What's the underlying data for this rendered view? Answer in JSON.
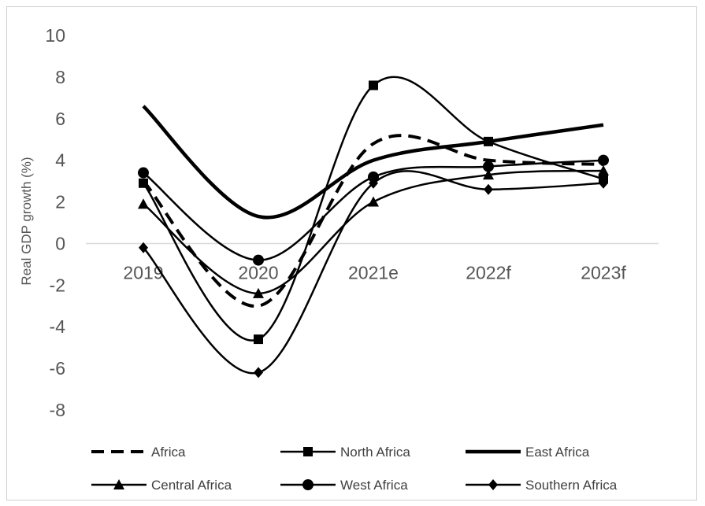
{
  "chart_data": {
    "type": "line",
    "title": "",
    "xlabel": "",
    "ylabel": "Real GDP growth (%)",
    "categories": [
      "2019",
      "2020",
      "2021e",
      "2022f",
      "2023f"
    ],
    "ylim": [
      -8,
      10
    ],
    "yticks": [
      "10",
      "8",
      "6",
      "4",
      "2",
      "0",
      "-2",
      "-4",
      "-6",
      "-8"
    ],
    "grid": false,
    "smoothed": true,
    "legend_position": "bottom",
    "series": [
      {
        "name": "Africa",
        "values": [
          3.0,
          -3.0,
          4.8,
          4.0,
          3.8
        ],
        "style": "dashed",
        "marker": "none",
        "color": "#000000"
      },
      {
        "name": "North Africa",
        "values": [
          2.9,
          -4.6,
          7.6,
          4.9,
          3.1
        ],
        "style": "solid",
        "marker": "square",
        "color": "#000000"
      },
      {
        "name": "East Africa",
        "values": [
          6.6,
          1.3,
          4.0,
          4.9,
          5.7
        ],
        "style": "thick",
        "marker": "none",
        "color": "#000000"
      },
      {
        "name": "Central Africa",
        "values": [
          1.9,
          -2.4,
          2.0,
          3.3,
          3.5
        ],
        "style": "solid",
        "marker": "triangle",
        "color": "#000000"
      },
      {
        "name": "West Africa",
        "values": [
          3.4,
          -0.8,
          3.2,
          3.7,
          4.0
        ],
        "style": "solid",
        "marker": "circle",
        "color": "#000000"
      },
      {
        "name": "Southern Africa",
        "values": [
          -0.2,
          -6.2,
          2.9,
          2.6,
          2.9
        ],
        "style": "solid",
        "marker": "diamond",
        "color": "#000000"
      }
    ]
  }
}
